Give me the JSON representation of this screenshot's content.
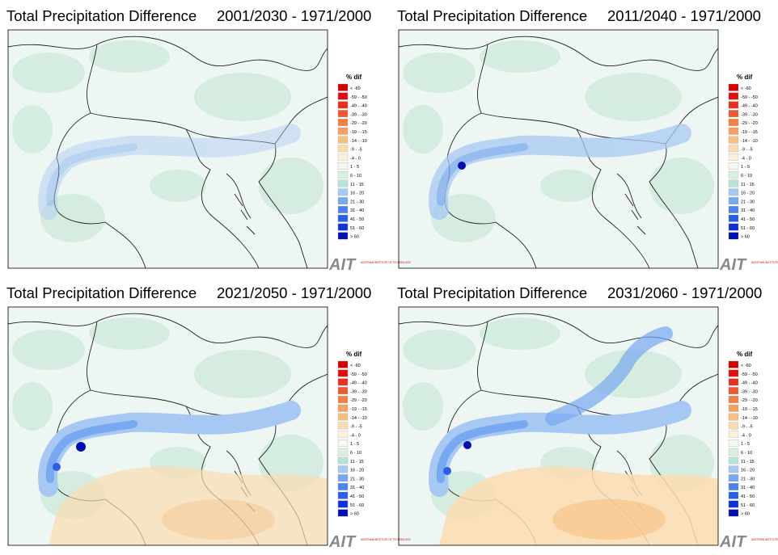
{
  "title": "Total Precipitation Difference",
  "panels": [
    {
      "period": "2001/2030 - 1971/2000"
    },
    {
      "period": "2011/2040 - 1971/2000"
    },
    {
      "period": "2021/2050 - 1971/2000"
    },
    {
      "period": "2031/2060 - 1971/2000"
    }
  ],
  "legend": {
    "title": "% dif",
    "items": [
      {
        "label": "< -60",
        "color": "#d50000"
      },
      {
        "label": "-59 - -50",
        "color": "#e01010"
      },
      {
        "label": "-49 - -40",
        "color": "#e83020"
      },
      {
        "label": "-39 - -30",
        "color": "#ee5a30"
      },
      {
        "label": "-29 - -20",
        "color": "#f28040"
      },
      {
        "label": "-19 - -15",
        "color": "#f5a060"
      },
      {
        "label": "-14 - -10",
        "color": "#f8c080"
      },
      {
        "label": "-9 - -5",
        "color": "#fbdcb0"
      },
      {
        "label": "-4 - 0",
        "color": "#fdf0dc"
      },
      {
        "label": "1 - 5",
        "color": "#f4f8f4"
      },
      {
        "label": "6 - 10",
        "color": "#d8f0e0"
      },
      {
        "label": "11 - 15",
        "color": "#b4e4dc"
      },
      {
        "label": "16 - 20",
        "color": "#a8c8f4"
      },
      {
        "label": "21 - 30",
        "color": "#78a8f0"
      },
      {
        "label": "31 - 40",
        "color": "#4c84ec"
      },
      {
        "label": "41 - 50",
        "color": "#2a5ee8"
      },
      {
        "label": "51 - 60",
        "color": "#1030d8"
      },
      {
        "label": "> 60",
        "color": "#0010b0"
      }
    ]
  },
  "logo": {
    "text": "AIT",
    "subtext": "AUSTRIAN INSTITUTE OF TECHNOLOGY"
  }
}
